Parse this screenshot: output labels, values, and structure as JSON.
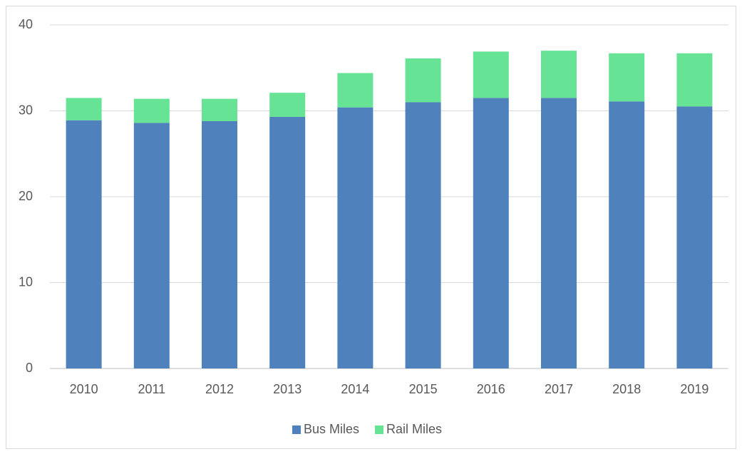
{
  "chart_data": {
    "type": "stacked_bar",
    "categories": [
      "2010",
      "2011",
      "2012",
      "2013",
      "2014",
      "2015",
      "2016",
      "2017",
      "2018",
      "2019"
    ],
    "series": [
      {
        "name": "Bus Miles",
        "color": "#4f81bd",
        "values": [
          28.9,
          28.6,
          28.8,
          29.3,
          30.4,
          31.0,
          31.5,
          31.5,
          31.1,
          30.5
        ]
      },
      {
        "name": "Rail Miles",
        "color": "#66e394",
        "values": [
          2.6,
          2.8,
          2.6,
          2.8,
          4.0,
          5.1,
          5.4,
          5.5,
          5.6,
          6.2
        ]
      }
    ],
    "ylim": [
      0,
      40
    ],
    "yticks": [
      0,
      10,
      20,
      30,
      40
    ],
    "grid": true,
    "legend": "bottom"
  }
}
